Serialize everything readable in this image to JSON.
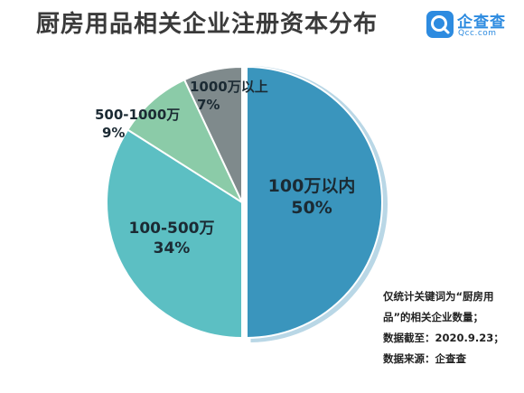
{
  "header": {
    "title": "厨房用品相关企业注册资本分布",
    "brand_name": "企查查",
    "brand_sub": "Qcc.com",
    "brand_color": "#2d8be0"
  },
  "notes": [
    "仅统计关键词为“厨房用",
    "品”的相关企业数量；",
    "数据截至：2020.9.23；",
    "数据来源：企查查"
  ],
  "chart_data": {
    "type": "pie",
    "title": "厨房用品相关企业注册资本分布",
    "start": "12 o'clock, clockwise",
    "slices": [
      {
        "name": "100万以内",
        "value": 50,
        "label": "50%",
        "color": "#3a95bd",
        "exploded": true
      },
      {
        "name": "100-500万",
        "value": 34,
        "label": "34%",
        "color": "#5cbfc3"
      },
      {
        "name": "500-1000万",
        "value": 9,
        "label": "9%",
        "color": "#8bcba8"
      },
      {
        "name": "1000万以上",
        "value": 7,
        "label": "7%",
        "color": "#7f8a8c"
      }
    ]
  }
}
